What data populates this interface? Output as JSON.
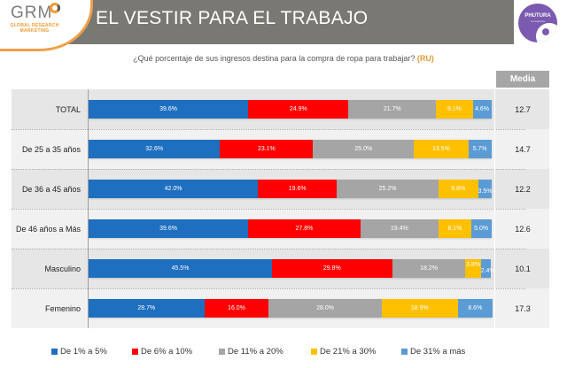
{
  "header": {
    "title": "EL VESTIR PARA EL TRABAJO",
    "logo_left": {
      "name": "GRM",
      "subtitle_line1": "GLOBAL RESEARCH",
      "subtitle_line2": "MARKETING"
    },
    "logo_right": {
      "name": "PHUTURA",
      "subtitle": "Consultores"
    }
  },
  "question": {
    "text": "¿Qué porcentaje de sus ingresos destina para la compra de ropa para trabajar?",
    "tag": "(RU)"
  },
  "colors": {
    "de_1_a_5": "#1f6fc0",
    "de_6_a_10": "#ff0000",
    "de_11_a_20": "#a5a5a5",
    "de_21_a_30": "#ffc000",
    "de_31_a_mas": "#5b9bd5"
  },
  "chart_data": {
    "type": "bar",
    "orientation": "horizontal",
    "stacked": true,
    "title": "¿Qué porcentaje de sus ingresos destina para la compra de ropa para trabajar? (RU)",
    "xlabel": "",
    "ylabel": "",
    "xlim": [
      0,
      100
    ],
    "grid": false,
    "legend_position": "bottom",
    "categories": [
      "TOTAL",
      "De 25 a 35 años",
      "De 36 a 45 años",
      "De 46 años a Más",
      "Masculino",
      "Femenino"
    ],
    "series": [
      {
        "name": "De 1% a 5%",
        "color": "#1f6fc0",
        "values": [
          39.6,
          32.6,
          42.0,
          39.6,
          45.5,
          28.7
        ],
        "labels": [
          "39.6%",
          "32.6%",
          "42.0%",
          "39.6%",
          "45.5%",
          "28.7%"
        ]
      },
      {
        "name": "De 6% a 10%",
        "color": "#ff0000",
        "values": [
          24.9,
          23.1,
          19.6,
          27.8,
          29.8,
          16.0
        ],
        "labels": [
          "24.9%",
          "23.1%",
          "19.6%",
          "27.8%",
          "29.8%",
          "16.0%"
        ]
      },
      {
        "name": "De 11% a 20%",
        "color": "#a5a5a5",
        "values": [
          21.7,
          25.0,
          25.2,
          19.4,
          18.2,
          28.0
        ],
        "labels": [
          "21.7%",
          "25.0%",
          "25.2%",
          "19.4%",
          "18.2%",
          "28.0%"
        ]
      },
      {
        "name": "De 21% a 30%",
        "color": "#ffc000",
        "values": [
          9.1,
          13.5,
          9.8,
          8.1,
          3.8,
          18.9
        ],
        "labels": [
          "9.1%",
          "13.5%",
          "9.8%",
          "8.1%",
          "3.8%",
          "18.9%"
        ]
      },
      {
        "name": "De 31% a más",
        "color": "#5b9bd5",
        "values": [
          4.6,
          5.7,
          3.5,
          5.0,
          2.4,
          8.6
        ],
        "labels": [
          "4.6%",
          "5.7%",
          "3.5%",
          "5.0%",
          "2.4%",
          "8.6%"
        ]
      }
    ],
    "media": {
      "header": "Media",
      "values": [
        "12.7",
        "14.7",
        "12.2",
        "12.6",
        "10.1",
        "17.3"
      ]
    }
  }
}
